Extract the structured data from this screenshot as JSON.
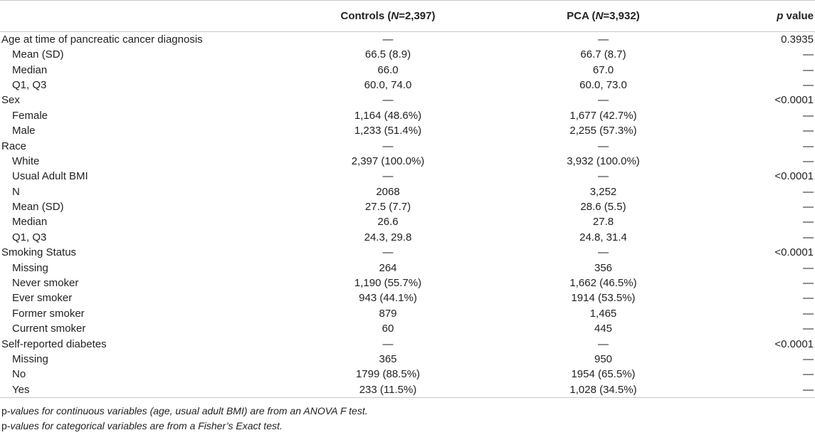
{
  "header": {
    "controls_label": "Controls (",
    "controls_n_sym": "N",
    "controls_n_val": "=2,397)",
    "pca_label": "PCA (",
    "pca_n_sym": "N",
    "pca_n_val": "=3,932)",
    "p_sym": "p",
    "p_value_label": " value"
  },
  "rows": [
    {
      "label": "Age at time of pancreatic cancer diagnosis",
      "indent": false,
      "controls": "—",
      "pca": "—",
      "p": "0.3935"
    },
    {
      "label": "Mean (SD)",
      "indent": true,
      "controls": "66.5 (8.9)",
      "pca": "66.7 (8.7)",
      "p": "—"
    },
    {
      "label": "Median",
      "indent": true,
      "controls": "66.0",
      "pca": "67.0",
      "p": "—"
    },
    {
      "label": "Q1, Q3",
      "indent": true,
      "controls": "60.0, 74.0",
      "pca": "60.0, 73.0",
      "p": "—"
    },
    {
      "label": "Sex",
      "indent": false,
      "controls": "—",
      "pca": "—",
      "p": "<0.0001"
    },
    {
      "label": "Female",
      "indent": true,
      "controls": "1,164 (48.6%)",
      "pca": "1,677 (42.7%)",
      "p": "—"
    },
    {
      "label": "Male",
      "indent": true,
      "controls": "1,233 (51.4%)",
      "pca": "2,255 (57.3%)",
      "p": "—"
    },
    {
      "label": "Race",
      "indent": false,
      "controls": "—",
      "pca": "—",
      "p": "—"
    },
    {
      "label": "White",
      "indent": true,
      "controls": "2,397 (100.0%)",
      "pca": "3,932 (100.0%)",
      "p": "—"
    },
    {
      "label": "Usual Adult BMI",
      "indent": true,
      "controls": "—",
      "pca": "—",
      "p": "<0.0001"
    },
    {
      "label": "N",
      "indent": true,
      "controls": "2068",
      "pca": "3,252",
      "p": "—"
    },
    {
      "label": "Mean (SD)",
      "indent": true,
      "controls": "27.5 (7.7)",
      "pca": "28.6 (5.5)",
      "p": "—"
    },
    {
      "label": "Median",
      "indent": true,
      "controls": "26.6",
      "pca": "27.8",
      "p": "—"
    },
    {
      "label": "Q1, Q3",
      "indent": true,
      "controls": "24.3, 29.8",
      "pca": "24.8, 31.4",
      "p": "—"
    },
    {
      "label": "Smoking Status",
      "indent": false,
      "controls": "—",
      "pca": "—",
      "p": "<0.0001"
    },
    {
      "label": "Missing",
      "indent": true,
      "controls": "264",
      "pca": "356",
      "p": "—"
    },
    {
      "label": "Never smoker",
      "indent": true,
      "controls": "1,190 (55.7%)",
      "pca": "1,662 (46.5%)",
      "p": "—"
    },
    {
      "label": "Ever smoker",
      "indent": true,
      "controls": "943 (44.1%)",
      "pca": "1914 (53.5%)",
      "p": "—"
    },
    {
      "label": "Former smoker",
      "indent": true,
      "controls": "879",
      "pca": "1,465",
      "p": "—"
    },
    {
      "label": "Current smoker",
      "indent": true,
      "controls": "60",
      "pca": "445",
      "p": "—"
    },
    {
      "label": "Self-reported diabetes",
      "indent": false,
      "controls": "—",
      "pca": "—",
      "p": "<0.0001"
    },
    {
      "label": "Missing",
      "indent": true,
      "controls": "365",
      "pca": "950",
      "p": "—"
    },
    {
      "label": "No",
      "indent": true,
      "controls": "1799 (88.5%)",
      "pca": "1954 (65.5%)",
      "p": "—"
    },
    {
      "label": "Yes",
      "indent": true,
      "controls": "233 (11.5%)",
      "pca": "1,028 (34.5%)",
      "p": "—"
    }
  ],
  "footnotes": {
    "note1_prefix": "p-",
    "note1_text": "values for continuous variables (age, usual adult BMI) are from an ANOVA F test.",
    "note2_prefix": "p-",
    "note2_text": "values for categorical variables are from a Fisher’s Exact test."
  }
}
